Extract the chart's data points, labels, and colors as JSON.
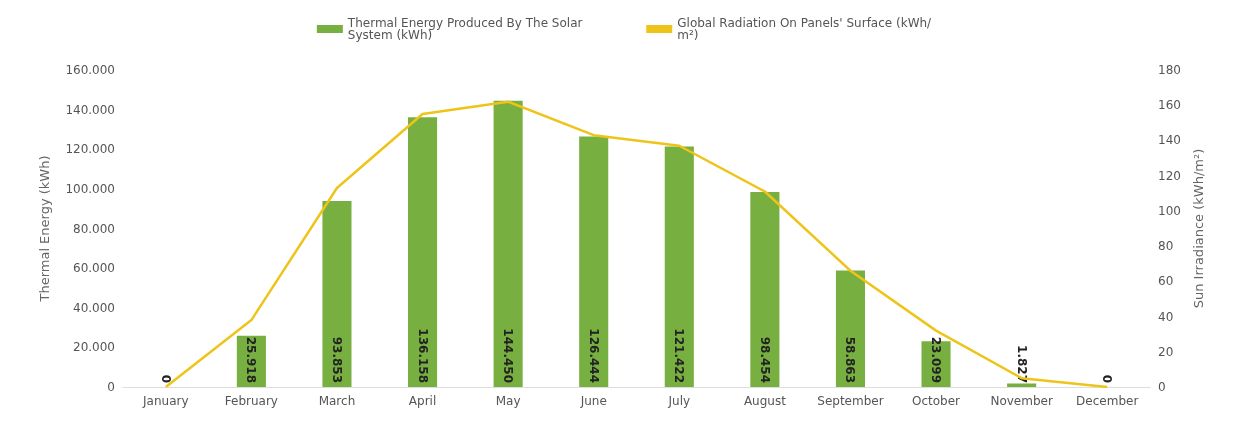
{
  "chart_data": {
    "type": "bar",
    "categories": [
      "January",
      "February",
      "March",
      "April",
      "May",
      "June",
      "July",
      "August",
      "September",
      "October",
      "November",
      "December"
    ],
    "series": [
      {
        "name": "Thermal Energy Produced By The Solar System (kWh)",
        "color": "#77b041",
        "values": [
          0,
          25918,
          93853,
          136158,
          144450,
          126444,
          121422,
          98454,
          58863,
          23099,
          1827,
          0
        ],
        "value_labels": [
          "0",
          "25.918",
          "93.853",
          "136.158",
          "144.450",
          "126.444",
          "121.422",
          "98.454",
          "58.863",
          "23.099",
          "1.827",
          "0"
        ]
      },
      {
        "type": "line",
        "axis": "y2",
        "name": "Global Radiation On Panels' Surface (kWh/m²)",
        "color": "#efc41a",
        "values": [
          0,
          38,
          113,
          155,
          162,
          143,
          137,
          111,
          66,
          32,
          5,
          0
        ]
      }
    ],
    "ylabel": "Thermal Energy (kWh)",
    "y2label": "Sun Irradiance (kWh/m²)",
    "ylim": [
      0,
      160000
    ],
    "yticks": [
      0,
      {
        "value": 20000,
        "label": "20.000"
      },
      {
        "value": 40000,
        "label": "40.000"
      },
      {
        "value": 60000,
        "label": "60.000"
      },
      {
        "value": 80000,
        "label": "80.000"
      },
      {
        "value": 100000,
        "label": "100.000"
      },
      {
        "value": 120000,
        "label": "120.000"
      },
      {
        "value": 140000,
        "label": "140.000"
      },
      {
        "value": 160000,
        "label": "160.000"
      }
    ],
    "y2lim": [
      0,
      180
    ],
    "y2ticks": [
      0,
      20,
      40,
      60,
      80,
      100,
      120,
      140,
      160,
      180
    ],
    "grid": false,
    "legend": "top",
    "marker": "none",
    "line_style": "solid"
  }
}
